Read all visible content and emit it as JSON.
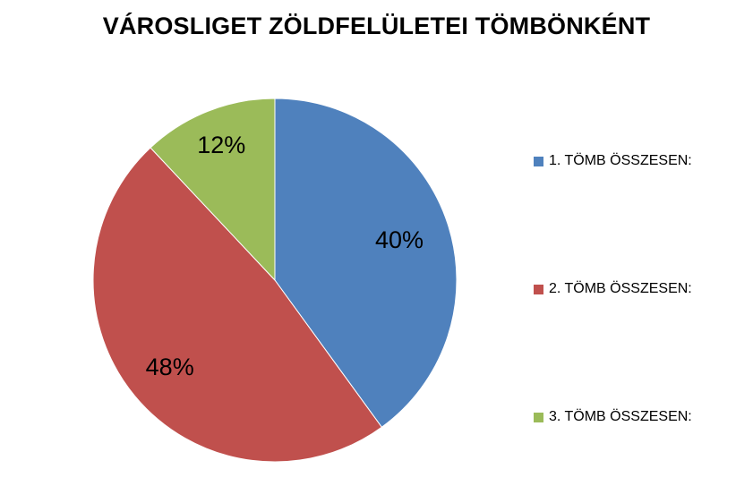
{
  "chart_data": {
    "type": "pie",
    "title": "VÁROSLIGET ZÖLDFELÜLETEI TÖMBÖNKÉNT",
    "categories": [
      "1. TÖMB ÖSSZESEN:",
      "2. TÖMB ÖSSZESEN:",
      "3. TÖMB ÖSSZESEN:"
    ],
    "values": [
      40,
      48,
      12
    ],
    "value_labels": [
      "40%",
      "48%",
      "12%"
    ],
    "colors": [
      "#4f81bd",
      "#c0504d",
      "#9bbb59"
    ],
    "legend_position": "right",
    "start_angle": "12 o'clock",
    "direction": "clockwise"
  }
}
